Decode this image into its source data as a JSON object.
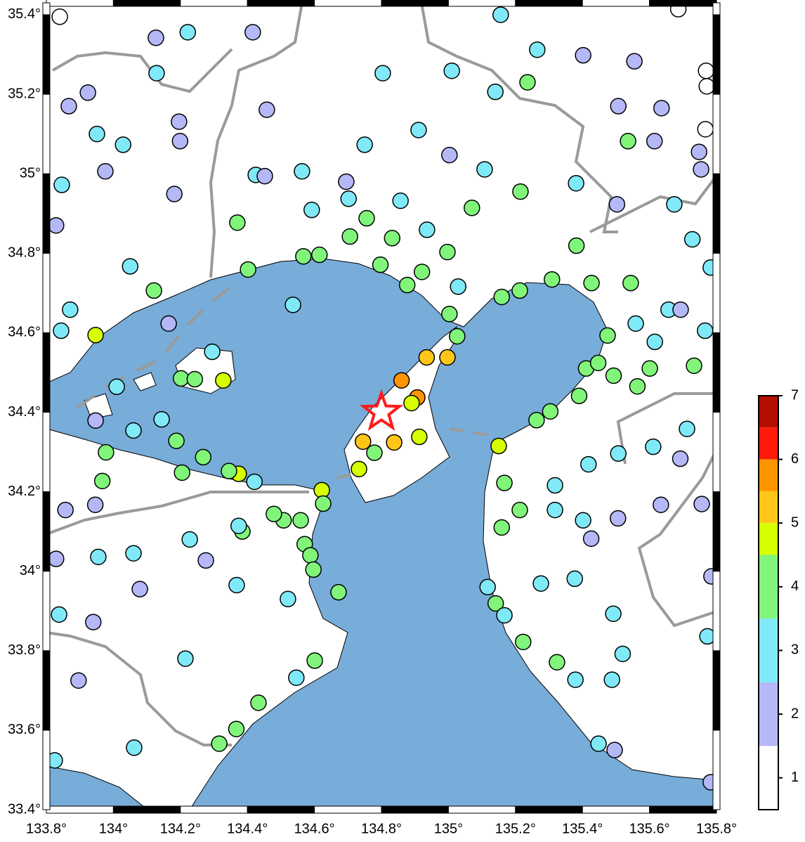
{
  "chart_data": {
    "type": "scatter",
    "xlim": [
      133.8,
      135.8
    ],
    "ylim": [
      33.4,
      35.43
    ],
    "xticks": [
      {
        "value": 133.8,
        "label": "133.8°"
      },
      {
        "value": 134,
        "label": "134°"
      },
      {
        "value": 134.2,
        "label": "134.2°"
      },
      {
        "value": 134.4,
        "label": "134.4°"
      },
      {
        "value": 134.6,
        "label": "134.6°"
      },
      {
        "value": 134.8,
        "label": "134.8°"
      },
      {
        "value": 135,
        "label": "135°"
      },
      {
        "value": 135.2,
        "label": "135.2°"
      },
      {
        "value": 135.4,
        "label": "135.4°"
      },
      {
        "value": 135.6,
        "label": "135.6°"
      },
      {
        "value": 135.8,
        "label": "135.8°"
      }
    ],
    "yticks": [
      {
        "value": 33.4,
        "label": "33.4°"
      },
      {
        "value": 33.6,
        "label": "33.6°"
      },
      {
        "value": 33.8,
        "label": "33.8°"
      },
      {
        "value": 34,
        "label": "34°"
      },
      {
        "value": 34.2,
        "label": "34.2°"
      },
      {
        "value": 34.4,
        "label": "34.4°"
      },
      {
        "value": 34.6,
        "label": "34.6°"
      },
      {
        "value": 34.8,
        "label": "34.8°"
      },
      {
        "value": 35,
        "label": "35°"
      },
      {
        "value": 35.2,
        "label": "35.2°"
      },
      {
        "value": 35.4,
        "label": "35.4°"
      }
    ],
    "epicenter": {
      "lon": 134.8,
      "lat": 34.4,
      "color": "#ff1a1a"
    },
    "colorbar": {
      "lim": [
        0.5,
        7
      ],
      "ticks": [
        1,
        2,
        3,
        4,
        5,
        6,
        7
      ],
      "bounds": [
        0.5,
        1.5,
        2.5,
        3.5,
        4.5,
        5,
        5.5,
        6,
        6.5,
        7
      ],
      "colors": [
        "#ffffff",
        "#b4b8f6",
        "#80e9f8",
        "#80f57a",
        "#d6ff00",
        "#ffc619",
        "#ff9400",
        "#ff1a0a",
        "#b30f00"
      ]
    },
    "x": [
      134.86,
      134.907,
      134.838,
      134.745,
      134.935,
      134.997,
      134.89,
      134.913,
      134.733,
      135.15,
      134.328,
      134.374,
      134.622,
      133.947,
      134.779,
      135.026,
      135.003,
      134.877,
      134.921,
      134.797,
      134.756,
      134.832,
      135.07,
      134.997,
      134.706,
      134.615,
      134.567,
      134.402,
      134.37,
      134.121,
      134.202,
      134.243,
      134.188,
      134.268,
      134.205,
      134.345,
      133.978,
      133.967,
      134.626,
      134.559,
      134.508,
      134.479,
      134.571,
      134.588,
      134.597,
      134.385,
      134.672,
      134.601,
      134.433,
      134.367,
      134.316,
      135.167,
      135.213,
      135.159,
      135.141,
      135.223,
      135.324,
      135.263,
      135.304,
      135.39,
      135.411,
      135.447,
      135.493,
      135.564,
      135.601,
      135.733,
      135.544,
      135.427,
      135.309,
      135.213,
      135.159,
      135.215,
      135.382,
      135.536,
      135.236,
      135.475,
      134.536,
      134.295,
      134.144,
      134.01,
      134.06,
      134.421,
      134.374,
      134.228,
      134.06,
      134.215,
      134.546,
      134.062,
      133.825,
      133.955,
      133.838,
      134.368,
      134.521,
      134.05,
      133.871,
      133.844,
      133.846,
      133.951,
      134.029,
      134.129,
      134.222,
      134.425,
      134.563,
      134.592,
      134.75,
      134.804,
      135.01,
      134.911,
      135.108,
      135.14,
      135.156,
      135.265,
      135.381,
      135.674,
      135.728,
      135.783,
      135.657,
      135.559,
      135.616,
      135.766,
      135.712,
      135.611,
      135.507,
      135.418,
      135.318,
      135.318,
      135.402,
      135.276,
      135.377,
      135.492,
      135.52,
      135.488,
      135.379,
      135.448,
      135.773,
      135.167,
      135.117,
      135.029,
      134.936,
      134.857,
      134.702,
      135.426,
      135.506,
      135.634,
      135.756,
      135.692,
      135.496,
      135.783,
      135.785,
      134.079,
      133.94,
      133.896,
      133.829,
      133.946,
      134.276,
      134.165,
      133.947,
      133.857,
      133.829,
      133.976,
      133.924,
      133.867,
      134.127,
      134.196,
      134.199,
      134.182,
      134.452,
      134.458,
      134.416,
      134.695,
      135.003,
      135.402,
      135.507,
      135.636,
      135.615,
      135.503,
      135.555,
      135.754,
      135.748,
      135.693,
      133.84,
      135.769,
      135.771,
      135.767,
      135.686
    ],
    "y": [
      34.48,
      34.437,
      34.324,
      34.326,
      34.538,
      34.538,
      34.423,
      34.338,
      34.257,
      34.315,
      34.48,
      34.245,
      34.204,
      34.594,
      34.298,
      34.591,
      34.647,
      34.72,
      34.753,
      34.771,
      34.888,
      34.838,
      34.914,
      34.803,
      34.842,
      34.796,
      34.792,
      34.759,
      34.877,
      34.706,
      34.485,
      34.483,
      34.328,
      34.287,
      34.248,
      34.252,
      34.299,
      34.227,
      34.17,
      34.128,
      34.128,
      34.144,
      34.068,
      34.04,
      34.004,
      34.1,
      33.947,
      33.775,
      33.669,
      33.603,
      33.566,
      34.222,
      34.154,
      34.11,
      33.919,
      33.822,
      33.771,
      34.38,
      34.402,
      34.441,
      34.51,
      34.524,
      34.492,
      34.465,
      34.51,
      34.517,
      34.725,
      34.725,
      34.734,
      34.706,
      34.69,
      34.955,
      34.819,
      35.082,
      35.23,
      34.593,
      34.67,
      34.552,
      34.382,
      34.464,
      34.354,
      34.225,
      34.114,
      34.08,
      34.045,
      33.78,
      33.732,
      33.556,
      33.524,
      34.036,
      33.891,
      33.965,
      33.93,
      34.767,
      34.658,
      34.605,
      34.972,
      35.1,
      35.073,
      35.253,
      35.356,
      34.997,
      35.006,
      34.909,
      35.073,
      35.253,
      35.259,
      35.11,
      35.011,
      35.206,
      35.4,
      35.312,
      34.976,
      34.923,
      34.835,
      34.764,
      34.658,
      34.623,
      34.577,
      34.605,
      34.358,
      34.313,
      34.296,
      34.269,
      34.216,
      34.154,
      34.128,
      33.969,
      33.981,
      33.893,
      33.792,
      33.727,
      33.727,
      33.566,
      33.836,
      33.889,
      33.96,
      34.716,
      34.859,
      34.932,
      34.937,
      34.082,
      34.133,
      34.167,
      34.169,
      34.283,
      33.55,
      33.469,
      33.987,
      33.955,
      33.872,
      33.725,
      34.031,
      34.167,
      34.027,
      34.623,
      34.379,
      34.154,
      34.87,
      35.006,
      35.204,
      35.17,
      35.342,
      35.131,
      35.082,
      34.949,
      34.994,
      35.161,
      35.356,
      34.98,
      35.047,
      35.298,
      35.17,
      35.165,
      35.082,
      34.923,
      35.283,
      35.011,
      35.055,
      34.658,
      35.395,
      35.259,
      35.22,
      35.112,
      35.414
    ],
    "values": [
      5.7,
      5.6,
      5.4,
      5.3,
      5.1,
      5.2,
      4.8,
      4.7,
      4.8,
      4.9,
      4.7,
      4.6,
      4.6,
      4.6,
      4,
      4,
      4,
      4,
      4,
      4,
      4,
      4,
      4,
      4,
      4,
      4,
      4,
      4,
      4,
      4,
      4,
      4,
      4,
      4,
      4,
      4,
      4,
      4,
      4,
      4,
      4,
      4,
      4,
      4,
      4,
      4,
      4,
      4,
      4,
      4,
      4,
      4,
      4,
      4,
      4,
      4,
      4,
      4,
      4,
      4,
      4,
      4,
      4,
      4,
      4,
      4,
      4,
      4,
      4,
      4,
      4,
      4,
      4,
      4,
      4,
      4,
      3,
      3,
      3,
      3,
      3,
      3,
      3,
      3,
      3,
      3,
      3,
      3,
      3,
      3,
      3,
      3,
      3,
      3,
      3,
      3,
      3,
      3,
      3,
      3,
      3,
      3,
      3,
      3,
      3,
      3,
      3,
      3,
      3,
      3,
      3,
      3,
      3,
      3,
      3,
      3,
      3,
      3,
      3,
      3,
      3,
      3,
      3,
      3,
      3,
      3,
      3,
      3,
      3,
      3,
      3,
      3,
      3,
      3,
      3,
      3,
      3,
      3,
      3,
      3,
      3,
      2,
      2,
      2,
      2,
      2,
      2,
      2,
      2,
      2,
      2,
      2,
      2,
      2,
      2,
      2,
      2,
      2,
      2,
      2,
      2,
      2,
      2,
      2,
      2,
      2,
      2,
      2,
      2,
      2,
      2,
      2,
      2,
      2,
      2,
      2,
      2,
      2,
      2,
      2,
      1,
      1,
      1,
      1,
      1
    ]
  }
}
